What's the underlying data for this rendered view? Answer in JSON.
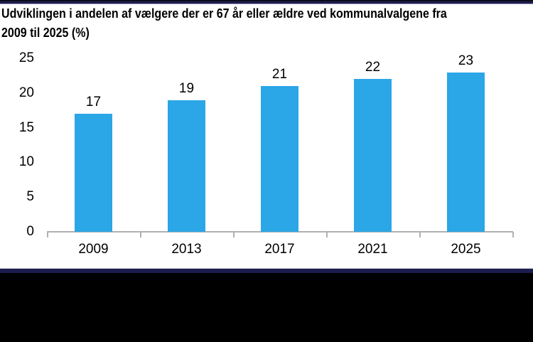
{
  "page": {
    "background_color": "#ffffff",
    "top_border_color": "#1c1c4e",
    "bottom_border_color": "#1c1c4e",
    "bottom_area_color": "#000000"
  },
  "chart_data": {
    "type": "bar",
    "title": "Udviklingen i andelen af vælgere der er 67 år eller ældre ved kommunalvalgene fra 2009 til 2025 (%)",
    "title_line1": "Udviklingen i andelen af vælgere der er 67 år eller ældre ved kommunalvalgene fra",
    "title_line2": "2009 til 2025 (%)",
    "categories": [
      "2009",
      "2013",
      "2017",
      "2021",
      "2025"
    ],
    "values": [
      17,
      19,
      21,
      22,
      23
    ],
    "data_labels": [
      "17",
      "19",
      "21",
      "22",
      "23"
    ],
    "y_ticks": [
      0,
      5,
      10,
      15,
      20,
      25
    ],
    "ylim": [
      0,
      25
    ],
    "xlabel": "",
    "ylabel": "",
    "grid": false,
    "legend_position": "none",
    "bar_color": "#2ba6e6",
    "axis_color": "#b0b0b0",
    "text_color": "#000000"
  }
}
